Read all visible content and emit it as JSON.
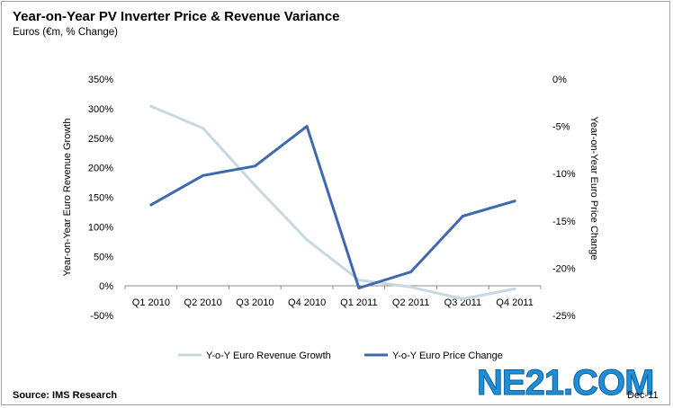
{
  "header": {
    "title": "Year-on-Year PV Inverter Price & Revenue Variance",
    "subtitle": "Euros (€m, % Change)"
  },
  "footer": {
    "source": "Source: IMS Research",
    "date": "Dec-11",
    "watermark": "NE21.COM"
  },
  "chart_data": {
    "type": "line",
    "categories": [
      "Q1 2010",
      "Q2 2010",
      "Q3 2010",
      "Q4 2010",
      "Q1 2011",
      "Q2 2011",
      "Q3 2011",
      "Q4 2011"
    ],
    "left_axis": {
      "label": "Year-on-Year Euro Revenue Growth",
      "ylim": [
        -50,
        350
      ],
      "ticks": [
        350,
        300,
        250,
        200,
        150,
        100,
        50,
        0,
        -50
      ],
      "tick_labels": [
        "350%",
        "300%",
        "250%",
        "200%",
        "150%",
        "100%",
        "50%",
        "0%",
        "-50%"
      ]
    },
    "right_axis": {
      "label": "Year-on-Year Euro Price Change",
      "ylim": [
        -25,
        0
      ],
      "ticks": [
        0,
        -5,
        -10,
        -15,
        -20,
        -25
      ],
      "tick_labels": [
        "0%",
        "-5%",
        "-10%",
        "-15%",
        "-20%",
        "-25%"
      ]
    },
    "grid": false,
    "legend_position": "bottom",
    "series": [
      {
        "name": "Y-o-Y Euro Revenue Growth",
        "axis": "left",
        "color": "#c7d8e0",
        "values": [
          304,
          267,
          170,
          78,
          10,
          -2,
          -22,
          -5
        ]
      },
      {
        "name": "Y-o-Y Euro Price Change",
        "axis": "right",
        "color": "#3e69ae",
        "values": [
          -13.3,
          -10.2,
          -9.2,
          -5.0,
          -22.1,
          -20.4,
          -14.5,
          -12.9
        ]
      }
    ]
  }
}
